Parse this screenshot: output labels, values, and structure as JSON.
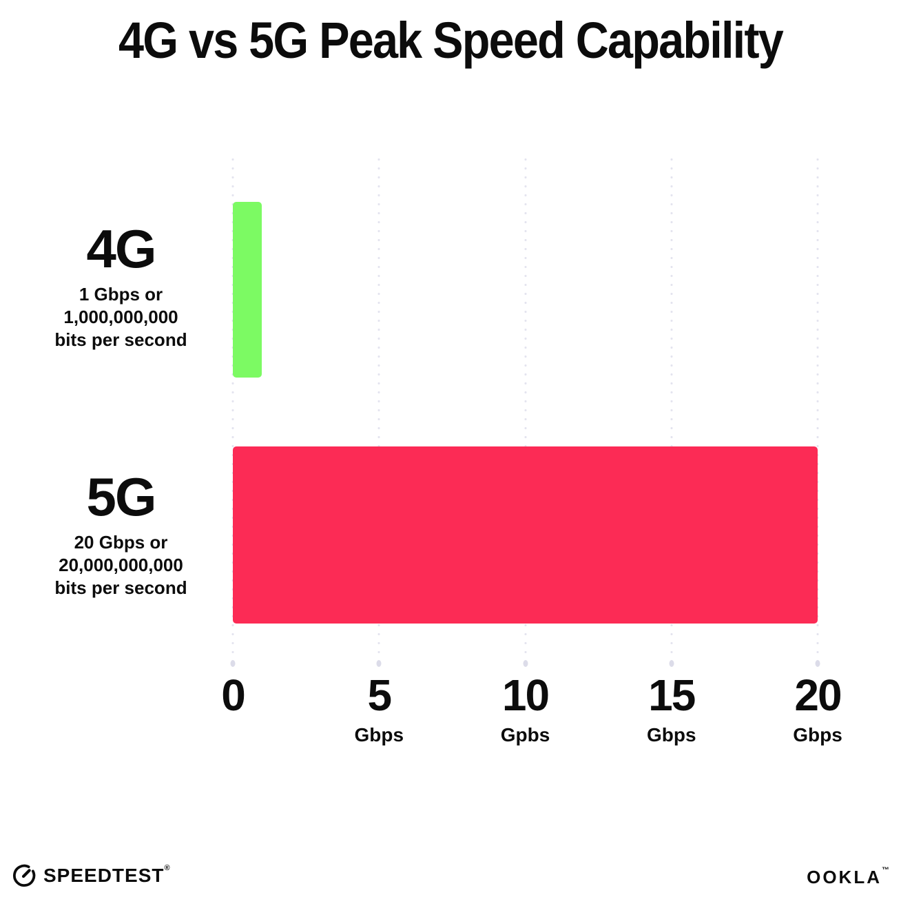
{
  "title": "4G vs 5G Peak Speed Capability",
  "colors": {
    "bar_4g_green": "#7CFA63",
    "bar_5g_red": "#FC2B55",
    "grid_dot": "#E4E4EF",
    "text": "#0c0c0c",
    "background": "#ffffff"
  },
  "chart_data": {
    "type": "bar",
    "orientation": "horizontal",
    "title": "4G vs 5G Peak Speed Capability",
    "xlabel": "",
    "ylabel": "",
    "xlim": [
      0,
      20
    ],
    "grid": "vertical-dotted",
    "legend": "none",
    "categories": [
      "4G",
      "5G"
    ],
    "values": [
      1,
      20
    ],
    "bar_colors": [
      "#7CFA63",
      "#FC2B55"
    ],
    "category_sublabels": [
      [
        "1 Gbps or",
        "1,000,000,000",
        "bits per second"
      ],
      [
        "20 Gbps or",
        "20,000,000,000",
        "bits per second"
      ]
    ],
    "x_ticks": [
      {
        "value": 0,
        "label": "0",
        "unit": ""
      },
      {
        "value": 5,
        "label": "5",
        "unit": "Gbps"
      },
      {
        "value": 10,
        "label": "10",
        "unit": "Gpbs"
      },
      {
        "value": 15,
        "label": "15",
        "unit": "Gbps"
      },
      {
        "value": 20,
        "label": "20",
        "unit": "Gbps"
      }
    ]
  },
  "footer": {
    "speedtest_label": "SPEEDTEST",
    "speedtest_trademark": "®",
    "ookla_label": "OOKLA",
    "ookla_trademark": "™"
  }
}
